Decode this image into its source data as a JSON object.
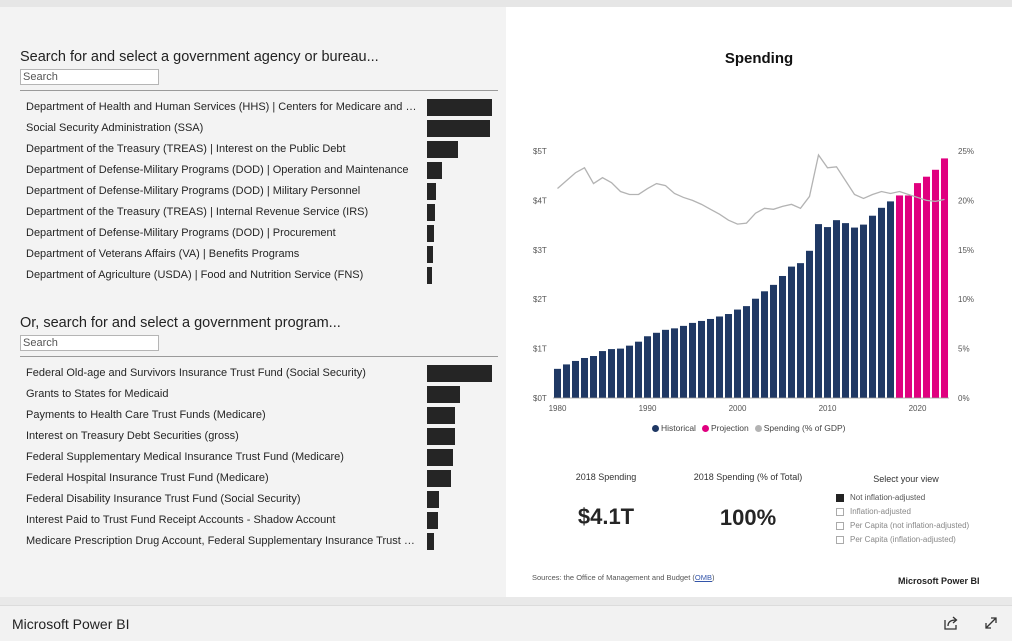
{
  "agency_search": {
    "heading": "Search for and select a government agency or bureau...",
    "placeholder": "Search",
    "items": [
      {
        "label": "Department of Health and Human Services (HHS) | Centers for Medicare and Medic...",
        "value": 1.0
      },
      {
        "label": "Social Security Administration (SSA)",
        "value": 0.97
      },
      {
        "label": "Department of the Treasury (TREAS) | Interest on the Public Debt",
        "value": 0.47
      },
      {
        "label": "Department of Defense-Military Programs (DOD) | Operation and Maintenance",
        "value": 0.23
      },
      {
        "label": "Department of Defense-Military Programs (DOD) | Military Personnel",
        "value": 0.14
      },
      {
        "label": "Department of the Treasury (TREAS) | Internal Revenue Service (IRS)",
        "value": 0.13
      },
      {
        "label": "Department of Defense-Military Programs (DOD) | Procurement",
        "value": 0.1
      },
      {
        "label": "Department of Veterans Affairs (VA) | Benefits Programs",
        "value": 0.09
      },
      {
        "label": "Department of Agriculture (USDA) | Food and Nutrition Service (FNS)",
        "value": 0.08
      }
    ]
  },
  "program_search": {
    "heading": "Or, search for and select a government program...",
    "placeholder": "Search",
    "items": [
      {
        "label": "Federal Old-age and Survivors Insurance Trust Fund (Social Security)",
        "value": 1.0
      },
      {
        "label": "Grants to States for Medicaid",
        "value": 0.5
      },
      {
        "label": "Payments to Health Care Trust Funds (Medicare)",
        "value": 0.43
      },
      {
        "label": "Interest on Treasury Debt Securities (gross)",
        "value": 0.43
      },
      {
        "label": "Federal Supplementary Medical Insurance Trust Fund (Medicare)",
        "value": 0.4
      },
      {
        "label": "Federal Hospital Insurance Trust Fund (Medicare)",
        "value": 0.37
      },
      {
        "label": "Federal Disability Insurance Trust Fund (Social Security)",
        "value": 0.18
      },
      {
        "label": "Interest Paid to Trust Fund Receipt Accounts - Shadow Account",
        "value": 0.17
      },
      {
        "label": "Medicare Prescription Drug Account, Federal Supplementary Insurance Trust Fund (...",
        "value": 0.1
      }
    ]
  },
  "chart_data": {
    "type": "bar",
    "title": "Spending",
    "x": [
      1980,
      1981,
      1982,
      1983,
      1984,
      1985,
      1986,
      1987,
      1988,
      1989,
      1990,
      1991,
      1992,
      1993,
      1994,
      1995,
      1996,
      1997,
      1998,
      1999,
      2000,
      2001,
      2002,
      2003,
      2004,
      2005,
      2006,
      2007,
      2008,
      2009,
      2010,
      2011,
      2012,
      2013,
      2014,
      2015,
      2016,
      2017,
      2018,
      2019,
      2020,
      2021,
      2022,
      2023
    ],
    "series": [
      {
        "name": "Historical",
        "color": "#1f3864",
        "values": [
          0.59,
          0.68,
          0.75,
          0.81,
          0.85,
          0.95,
          0.99,
          1.0,
          1.06,
          1.14,
          1.25,
          1.32,
          1.38,
          1.41,
          1.46,
          1.52,
          1.56,
          1.6,
          1.65,
          1.7,
          1.79,
          1.86,
          2.01,
          2.16,
          2.29,
          2.47,
          2.66,
          2.73,
          2.98,
          3.52,
          3.46,
          3.6,
          3.54,
          3.45,
          3.51,
          3.69,
          3.85,
          3.98,
          null,
          null,
          null,
          null,
          null,
          null
        ]
      },
      {
        "name": "Projection",
        "color": "#e0007f",
        "values": [
          null,
          null,
          null,
          null,
          null,
          null,
          null,
          null,
          null,
          null,
          null,
          null,
          null,
          null,
          null,
          null,
          null,
          null,
          null,
          null,
          null,
          null,
          null,
          null,
          null,
          null,
          null,
          null,
          null,
          null,
          null,
          null,
          null,
          null,
          null,
          null,
          null,
          null,
          4.1,
          4.1,
          4.35,
          4.48,
          4.62,
          4.85
        ]
      },
      {
        "name": "Spending (% of GDP)",
        "color": "#b3b3b3",
        "axis": "right",
        "values": [
          21.2,
          22.0,
          22.8,
          23.3,
          21.7,
          22.3,
          21.8,
          20.9,
          20.6,
          20.6,
          21.2,
          21.7,
          21.5,
          20.7,
          20.3,
          20.0,
          19.6,
          19.1,
          18.6,
          18.0,
          17.6,
          17.7,
          18.7,
          19.2,
          19.1,
          19.4,
          19.6,
          19.2,
          20.4,
          24.6,
          23.3,
          23.4,
          22.0,
          20.6,
          20.2,
          20.6,
          20.9,
          20.7,
          20.9,
          20.6,
          20.3,
          20.0,
          19.9,
          20.1
        ]
      }
    ],
    "xticks": [
      "1980",
      "1990",
      "2000",
      "2010",
      "2020"
    ],
    "y_left_ticks": [
      "$0T",
      "$1T",
      "$2T",
      "$3T",
      "$4T",
      "$5T"
    ],
    "y_right_ticks": [
      "0%",
      "5%",
      "10%",
      "15%",
      "20%",
      "25%"
    ],
    "ylim_left": [
      0,
      5
    ],
    "ylim_right": [
      0,
      25
    ],
    "legend_position": "bottom-center"
  },
  "kpis": [
    {
      "label": "2018 Spending",
      "value": "$4.1T"
    },
    {
      "label": "2018 Spending (% of Total)",
      "value": "100%"
    }
  ],
  "view_selector": {
    "title": "Select your view",
    "options": [
      {
        "label": "Not inflation-adjusted",
        "selected": true
      },
      {
        "label": "Inflation-adjusted",
        "selected": false
      },
      {
        "label": "Per Capita (not inflation-adjusted)",
        "selected": false
      },
      {
        "label": "Per Capita (inflation-adjusted)",
        "selected": false
      }
    ]
  },
  "sources": {
    "prefix": "Sources: the Office of Management and Budget (",
    "link": "OMB",
    "suffix": ")"
  },
  "report_brand": "Microsoft Power BI",
  "footer": {
    "brand": "Microsoft Power BI",
    "icons": [
      "share-icon",
      "fullscreen-icon"
    ]
  }
}
